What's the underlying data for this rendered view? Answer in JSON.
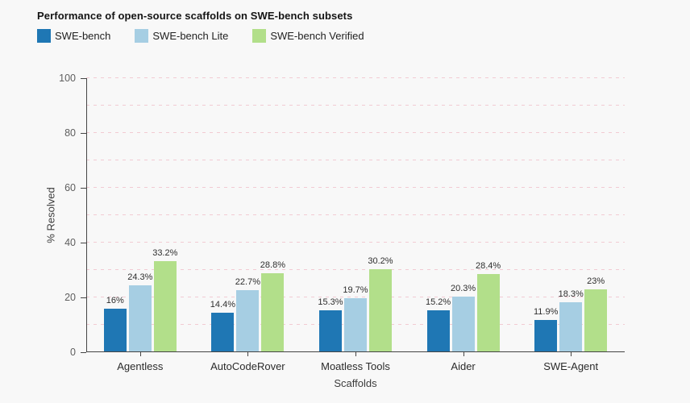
{
  "chart_data": {
    "type": "bar",
    "title": "Performance of open-source scaffolds on SWE-bench subsets",
    "xlabel": "Scaffolds",
    "ylabel": "% Resolved",
    "categories": [
      "Agentless",
      "AutoCodeRover",
      "Moatless Tools",
      "Aider",
      "SWE-Agent"
    ],
    "series": [
      {
        "name": "SWE-bench",
        "color": "#1f77b4",
        "values": [
          16,
          14.4,
          15.3,
          15.2,
          11.9
        ],
        "labels": [
          "16%",
          "14.4%",
          "15.3%",
          "15.2%",
          "11.9%"
        ]
      },
      {
        "name": "SWE-bench Lite",
        "color": "#a6cee3",
        "values": [
          24.3,
          22.7,
          19.7,
          20.3,
          18.3
        ],
        "labels": [
          "24.3%",
          "22.7%",
          "19.7%",
          "20.3%",
          "18.3%"
        ]
      },
      {
        "name": "SWE-bench Verified",
        "color": "#b2df8a",
        "values": [
          33.2,
          28.8,
          30.2,
          28.4,
          23
        ],
        "labels": [
          "33.2%",
          "28.8%",
          "30.2%",
          "28.4%",
          "23%"
        ]
      }
    ],
    "ylim": [
      0,
      100
    ],
    "yticks": [
      0,
      20,
      40,
      60,
      80,
      100
    ],
    "grid_step": 10,
    "grid": true,
    "legend_position": "top-left",
    "colors": {
      "background": "#f8f8f8",
      "grid": "#f2cbd3",
      "axis": "#454545"
    }
  }
}
